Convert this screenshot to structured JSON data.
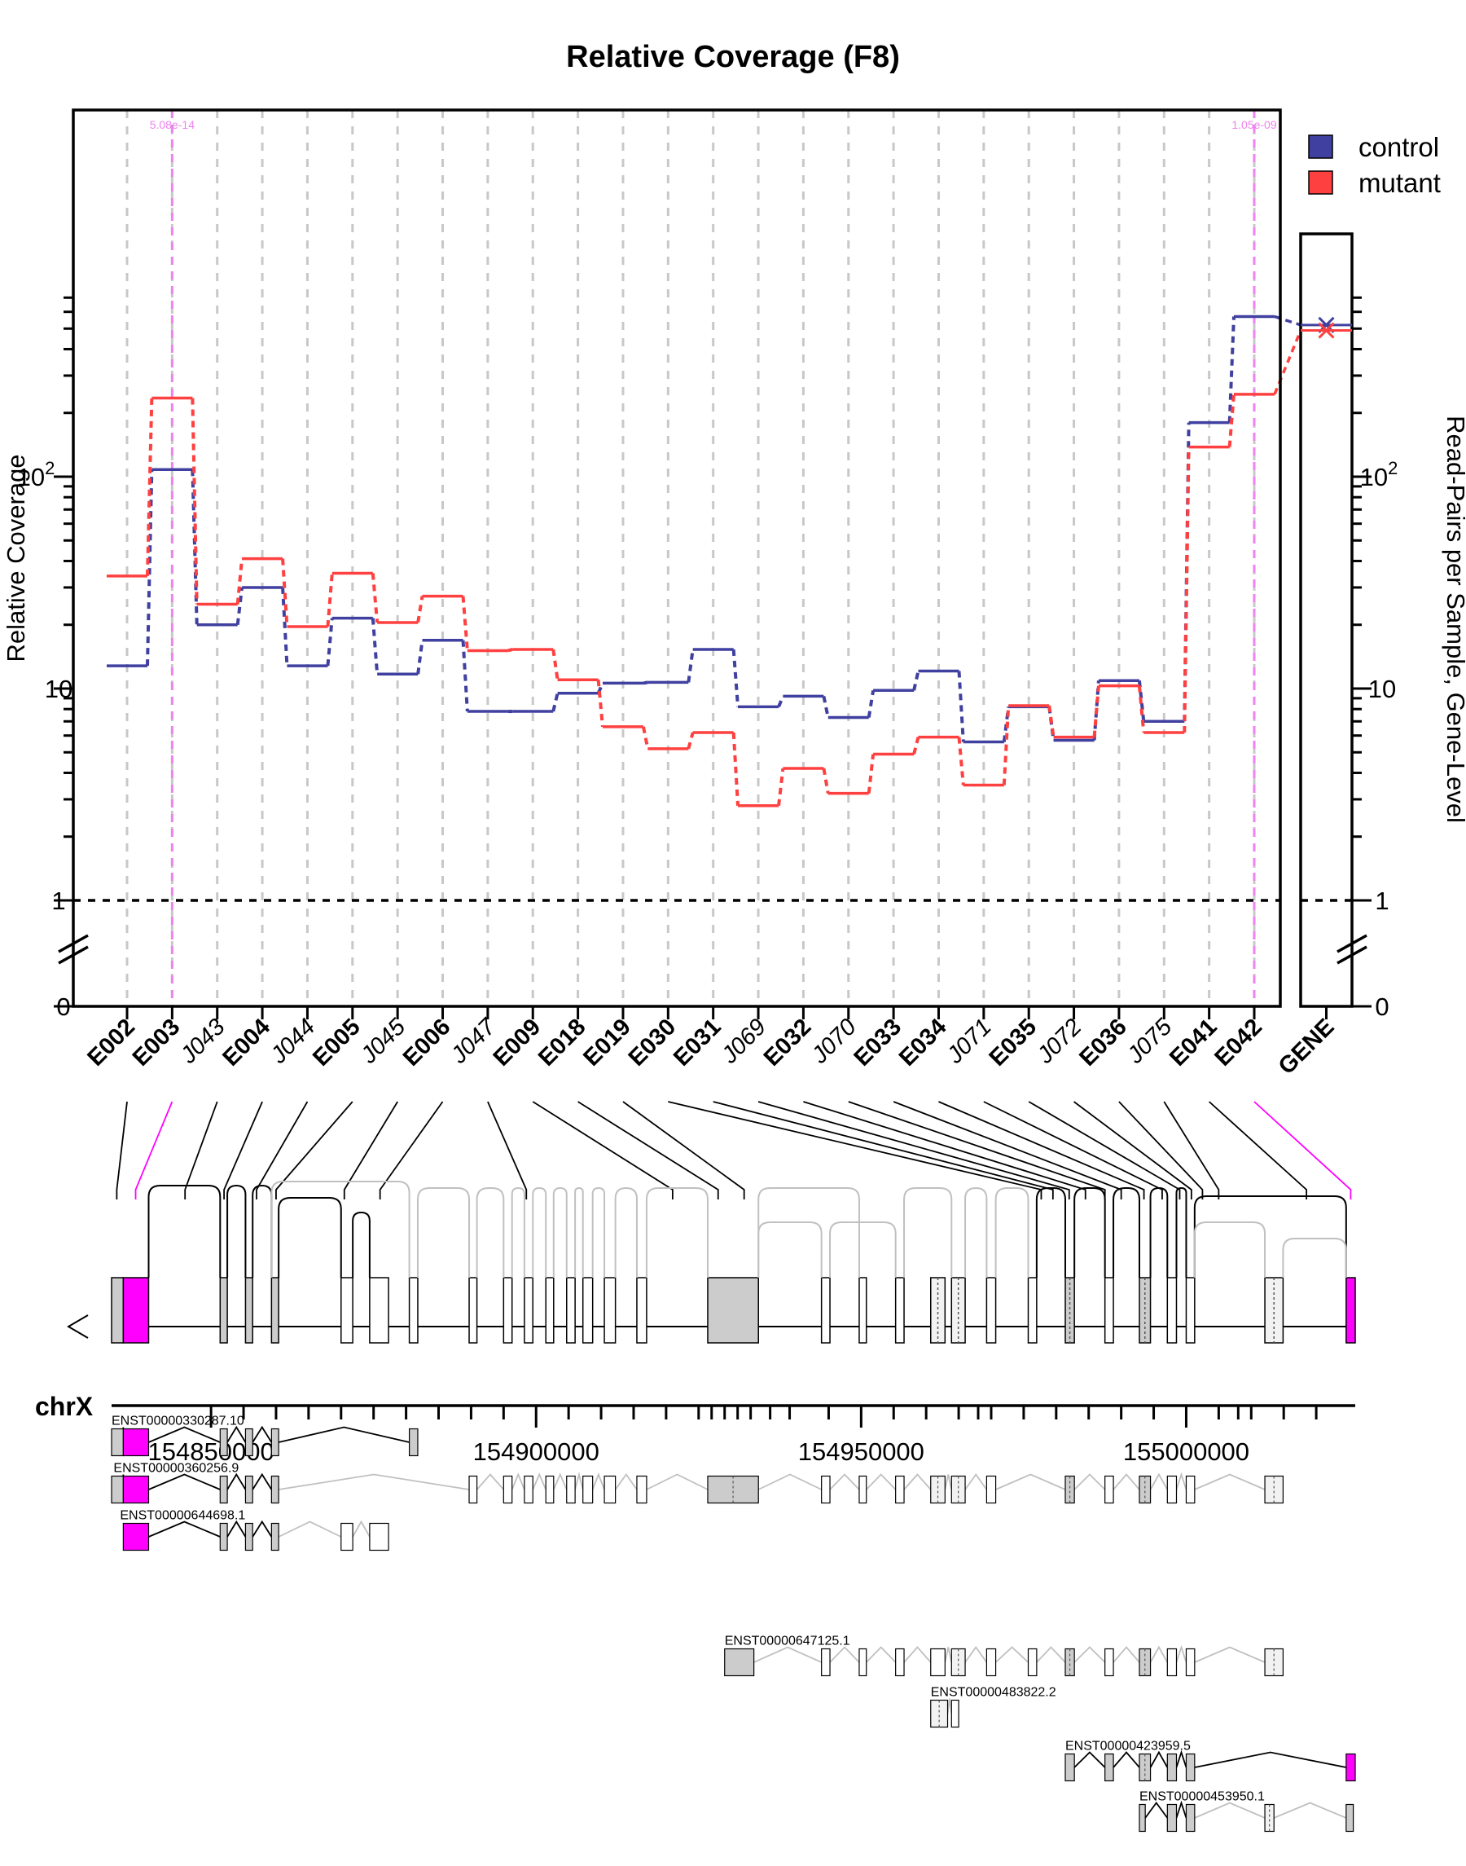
{
  "chart_data": {
    "type": "line",
    "title": "Relative Coverage (F8)",
    "ylabel": "Relative Coverage",
    "y2label": "Read-Pairs per Sample, Gene-Level",
    "yscale": "log",
    "ylim": [
      0.68,
      700
    ],
    "y_ticks": [
      {
        "value": 1,
        "label": "1"
      },
      {
        "value": 10,
        "label": "10"
      },
      {
        "value": 100,
        "label": "10",
        "sup": "2"
      }
    ],
    "y_zero_label": "0",
    "y2_ticks": [
      {
        "value": 1,
        "label": "1"
      },
      {
        "value": 10,
        "label": "10"
      },
      {
        "value": 100,
        "label": "10",
        "sup": "2"
      }
    ],
    "y2_zero_label": "0",
    "categories": [
      "E002",
      "E003",
      "J043",
      "E004",
      "J044",
      "E005",
      "J045",
      "E006",
      "J047",
      "E009",
      "E018",
      "E019",
      "E030",
      "E031",
      "J069",
      "E032",
      "J070",
      "E033",
      "E034",
      "J071",
      "E035",
      "J072",
      "E036",
      "J075",
      "E041",
      "E042"
    ],
    "category_style": [
      "bold",
      "bold",
      "italic",
      "bold",
      "italic",
      "bold",
      "italic",
      "bold",
      "italic",
      "bold",
      "bold",
      "bold",
      "bold",
      "bold",
      "italic",
      "bold",
      "italic",
      "bold",
      "bold",
      "italic",
      "bold",
      "italic",
      "bold",
      "italic",
      "bold",
      "bold"
    ],
    "series": [
      {
        "name": "control",
        "color": "#4040a0",
        "values": [
          12.8,
          108,
          20,
          30,
          12.8,
          21.5,
          11.7,
          16.9,
          7.8,
          7.8,
          9.5,
          10.6,
          10.7,
          15.3,
          8.2,
          9.2,
          7.3,
          9.8,
          12.1,
          5.6,
          8.2,
          5.7,
          10.9,
          7.0,
          180,
          570
        ]
      },
      {
        "name": "mutant",
        "color": "#ff4040",
        "values": [
          34,
          235,
          25,
          41,
          19.6,
          35,
          20.5,
          27.3,
          15.1,
          15.3,
          11.0,
          6.6,
          5.2,
          6.2,
          2.8,
          4.2,
          3.2,
          4.9,
          5.9,
          3.5,
          8.3,
          5.9,
          10.3,
          6.2,
          138,
          245
        ]
      }
    ],
    "highlight": [
      {
        "category": "E003",
        "pvalue": "5.08e-14"
      },
      {
        "category": "E042",
        "pvalue": "1.05e-09"
      }
    ],
    "reference_line": 1,
    "gene_panel": {
      "label": "GENE",
      "yscale": "log",
      "ylim": [
        0.68,
        700
      ],
      "series": [
        {
          "name": "control",
          "value": 520
        },
        {
          "name": "mutant",
          "value": 490
        }
      ]
    },
    "legend": {
      "position": "top-right",
      "entries": [
        "control",
        "mutant"
      ]
    },
    "genome": {
      "chromosome": "chrX",
      "range": [
        154834700,
        155026000
      ],
      "strand": "-",
      "tick_labels": [
        {
          "value": 154850000,
          "label": "154850000"
        },
        {
          "value": 154900000,
          "label": "154900000"
        },
        {
          "value": 154950000,
          "label": "154950000"
        },
        {
          "value": 155000000,
          "label": "155000000"
        }
      ],
      "minor_ticks": [
        154855000,
        154860000,
        154865000,
        154870000,
        154875000,
        154880000,
        154885000,
        154890000,
        154895000,
        154905000,
        154910000,
        154915000,
        154920000,
        154925000,
        154927000,
        154929000,
        154931000,
        154933000,
        154936000,
        154939000,
        154945000,
        154955000,
        154960000,
        154965000,
        154968000,
        154970000,
        154975000,
        154980000,
        154985000,
        154990000,
        154995000,
        155005000,
        155008000,
        155010000,
        155015000,
        155020000
      ],
      "transcripts": [
        {
          "id": "ENST00000330287.10"
        },
        {
          "id": "ENST00000360256.9"
        },
        {
          "id": "ENST00000644698.1"
        },
        {
          "id": "ENST00000647125.1"
        },
        {
          "id": "ENST00000483822.2"
        },
        {
          "id": "ENST00000423959.5"
        },
        {
          "id": "ENST00000453950.1"
        }
      ]
    }
  }
}
